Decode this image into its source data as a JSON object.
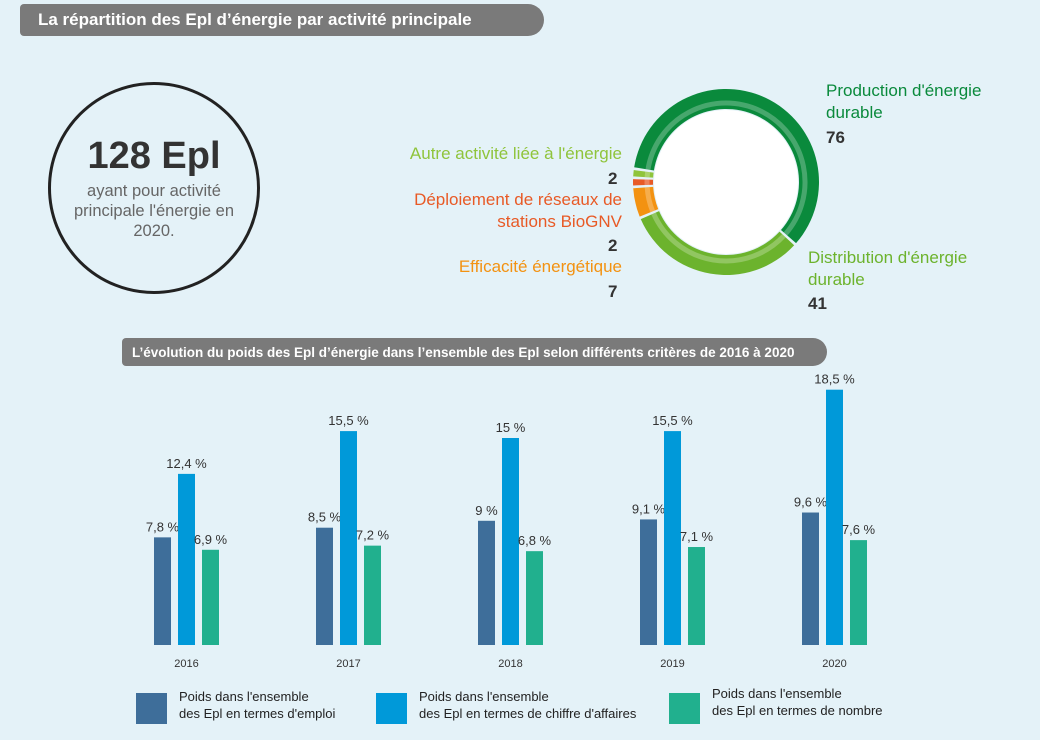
{
  "title": "La répartition des Epl d’énergie par activité principale",
  "total": {
    "count": "128 Epl",
    "description": "ayant pour activité principale l'énergie en 2020."
  },
  "chart_data": [
    {
      "type": "pie",
      "title": "La répartition des Epl d’énergie par activité principale",
      "slices": [
        {
          "label": "Production d'énergie durable",
          "value": 76,
          "color": "#0a8a3c"
        },
        {
          "label": "Distribution d'énergie durable",
          "value": 41,
          "color": "#6cb32d"
        },
        {
          "label": "Efficacité énergétique",
          "value": 7,
          "color": "#f39211"
        },
        {
          "label": "Déploiement de réseaux de stations BioGNV",
          "value": 2,
          "color": "#e85a26"
        },
        {
          "label": "Autre activité liée à l'énergie",
          "value": 2,
          "color": "#8fc43b"
        }
      ]
    },
    {
      "type": "bar",
      "title": "L’évolution du poids des Epl d’énergie dans l’ensemble des Epl selon différents critères de 2016 à 2020",
      "categories": [
        "2016",
        "2017",
        "2018",
        "2019",
        "2020"
      ],
      "series": [
        {
          "name": "Poids dans l'ensemble des Epl en termes d'emploi",
          "values": [
            7.8,
            8.5,
            9,
            9.1,
            9.6
          ],
          "labels": [
            "7,8 %",
            "8,5 %",
            "9 %",
            "9,1 %",
            "9,6 %"
          ],
          "color": "#3e6e9a"
        },
        {
          "name": "Poids dans l'ensemble des Epl en termes de chiffre d'affaires",
          "values": [
            12.4,
            15.5,
            15,
            15.5,
            18.5
          ],
          "labels": [
            "12,4 %",
            "15,5 %",
            "15 %",
            "15,5 %",
            "18,5 %"
          ],
          "color": "#0099d9"
        },
        {
          "name": "Poids dans l'ensemble des Epl en termes de nombre",
          "values": [
            6.9,
            7.2,
            6.8,
            7.1,
            7.6
          ],
          "labels": [
            "6,9 %",
            "7,2 %",
            "6,8 %",
            "7,1 %",
            "7,6 %"
          ],
          "color": "#21b08e"
        }
      ]
    }
  ],
  "legend": [
    {
      "text": "Poids dans l'ensemble\ndes Epl en termes d'emploi",
      "color": "#3e6e9a"
    },
    {
      "text": "Poids dans l'ensemble\ndes Epl en termes de chiffre d'affaires",
      "color": "#0099d9"
    },
    {
      "text": "Poids dans l'ensemble\ndes Epl en termes de nombre",
      "color": "#21b08e"
    }
  ]
}
